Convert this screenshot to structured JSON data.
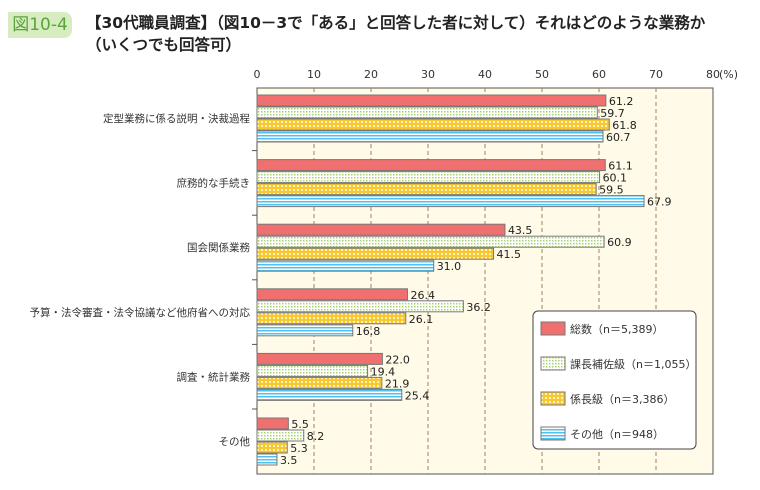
{
  "figure_label": "図10-4",
  "title_line1": "【30代職員調査】（図10－3で「ある」と回答した者に対して）それはどのような業務か",
  "title_line2": "（いくつでも回答可）",
  "chart_data": {
    "type": "bar",
    "orientation": "horizontal",
    "title": "【30代職員調査】（図10－3で「ある」と回答した者に対して）それはどのような業務か（いくつでも回答可）",
    "xlim": [
      0,
      80
    ],
    "x_ticks": [
      "0",
      "10",
      "20",
      "30",
      "40",
      "50",
      "60",
      "70",
      "80"
    ],
    "x_unit": "(%)",
    "grid": "vertical dashed",
    "legend_placement": "bottom-right",
    "categories": [
      "定型業務に係る説明・決裁過程",
      "庶務的な手続き",
      "国会関係業務",
      "予算・法令審査・法令協議など他府省への対応",
      "調査・統計業務",
      "その他"
    ],
    "series": [
      {
        "name": "総数（n＝5,389）",
        "color": "#f07070",
        "pattern": "solid",
        "values": [
          61.2,
          61.1,
          43.5,
          26.4,
          22.0,
          5.5
        ]
      },
      {
        "name": "課長補佐級（n＝1,055）",
        "color": "#a8d070",
        "pattern": "grid",
        "values": [
          59.7,
          60.1,
          60.9,
          36.2,
          19.4,
          8.2
        ]
      },
      {
        "name": "係長級（n＝3,386）",
        "color": "#f8c830",
        "pattern": "checker",
        "values": [
          61.8,
          59.5,
          41.5,
          26.1,
          21.9,
          5.3
        ]
      },
      {
        "name": "その他（n＝948）",
        "color": "#50c0f0",
        "pattern": "stripes",
        "values": [
          60.7,
          67.9,
          31.0,
          16.8,
          25.4,
          3.5
        ]
      }
    ]
  }
}
